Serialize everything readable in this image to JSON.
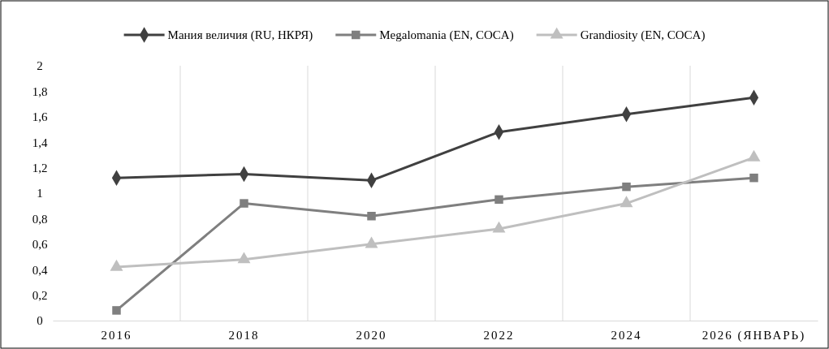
{
  "chart_data": {
    "type": "line",
    "categories": [
      "2016",
      "2018",
      "2020",
      "2022",
      "2024",
      "2026 (ЯНВАРЬ)"
    ],
    "series": [
      {
        "name": "Мания величия (RU, НКРЯ)",
        "color": "#404040",
        "marker": "diamond",
        "values": [
          1.12,
          1.15,
          1.1,
          1.48,
          1.62,
          1.75
        ]
      },
      {
        "name": "Megalomania (EN, COCA)",
        "color": "#7f7f7f",
        "marker": "square",
        "values": [
          0.08,
          0.92,
          0.82,
          0.95,
          1.05,
          1.12
        ]
      },
      {
        "name": "Grandiosity (EN, COCA)",
        "color": "#bfbfbf",
        "marker": "triangle",
        "values": [
          0.42,
          0.48,
          0.6,
          0.72,
          0.92,
          1.28
        ]
      }
    ],
    "ylim": [
      0,
      2
    ],
    "yticks": [
      0,
      {
        "value": 0.2,
        "label": "0,2"
      },
      {
        "value": 0.4,
        "label": "0,4"
      },
      {
        "value": 0.6,
        "label": "0,6"
      },
      {
        "value": 0.8,
        "label": "0,8"
      },
      1,
      {
        "value": 1.2,
        "label": "1,2"
      },
      {
        "value": 1.4,
        "label": "1,4"
      },
      {
        "value": 1.6,
        "label": "1,6"
      },
      {
        "value": 1.8,
        "label": "1,8"
      },
      2
    ],
    "grid": "x",
    "legend": "top",
    "line_style": "solid"
  }
}
